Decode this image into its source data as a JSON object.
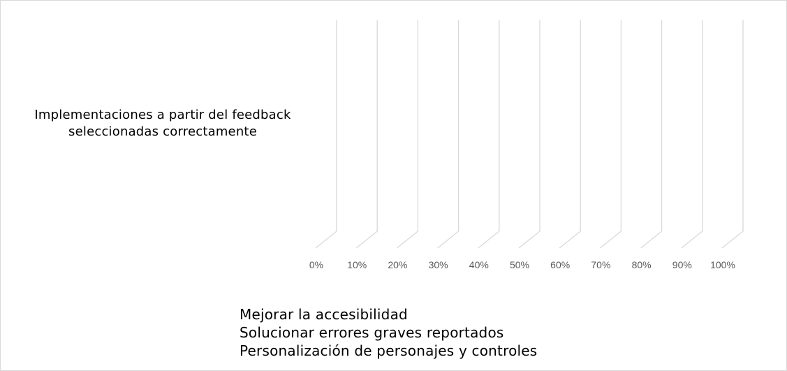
{
  "chart_data": {
    "type": "bar",
    "orientation": "horizontal",
    "stacked": true,
    "percent_stacked": true,
    "three_d": true,
    "categories": [
      "Implementaciones a partir del feedback\nseleccionadas correctamente"
    ],
    "series": [
      {
        "name": "Mejorar la accesibilidad",
        "values": [
          0
        ]
      },
      {
        "name": "Solucionar errores graves reportados",
        "values": [
          0
        ]
      },
      {
        "name": "Personalización de personajes y controles",
        "values": [
          0
        ]
      }
    ],
    "x_ticks": [
      "0%",
      "10%",
      "20%",
      "30%",
      "40%",
      "50%",
      "60%",
      "70%",
      "80%",
      "90%",
      "100%"
    ],
    "xlim": [
      0,
      1
    ],
    "grid": true,
    "legend_position": "bottom-left",
    "colors": {
      "gridline": "#d9d9d9",
      "tick_text": "#595959",
      "border": "#d9d9d9"
    }
  }
}
